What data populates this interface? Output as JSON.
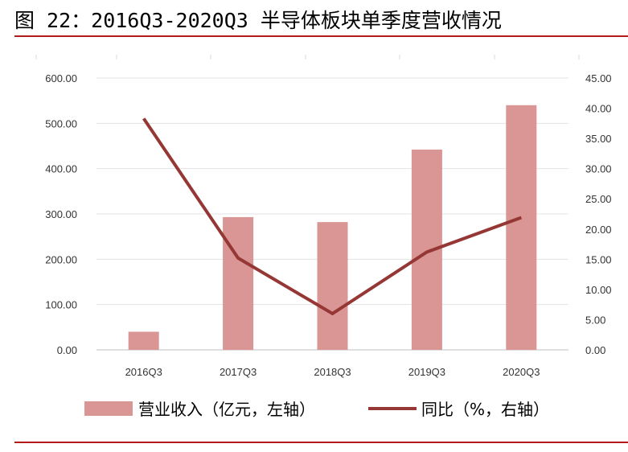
{
  "title": "图 22：2016Q3-2020Q3 半导体板块单季度营收情况",
  "colors": {
    "bar": "#d99694",
    "line": "#953735",
    "rule": "#b31b1b",
    "axis_text": "#333333"
  },
  "chart_data": {
    "type": "bar",
    "categories": [
      "2016Q3",
      "2017Q3",
      "2018Q3",
      "2019Q3",
      "2020Q3"
    ],
    "series": [
      {
        "name": "营业收入（亿元，左轴）",
        "type": "bar",
        "axis": "left",
        "values": [
          40,
          293,
          282,
          442,
          540
        ]
      },
      {
        "name": "同比（%，右轴）",
        "type": "line",
        "axis": "right",
        "values": [
          38.3,
          15.2,
          6.0,
          16.2,
          21.9
        ]
      }
    ],
    "left_axis": {
      "ylim": [
        0,
        600
      ],
      "ticks": [
        "0.00",
        "100.00",
        "200.00",
        "300.00",
        "400.00",
        "500.00",
        "600.00"
      ]
    },
    "right_axis": {
      "ylim": [
        0,
        45
      ],
      "ticks": [
        "0.00",
        "5.00",
        "10.00",
        "15.00",
        "20.00",
        "25.00",
        "30.00",
        "35.00",
        "40.00",
        "45.00"
      ]
    },
    "grid": true,
    "legend_position": "bottom"
  }
}
